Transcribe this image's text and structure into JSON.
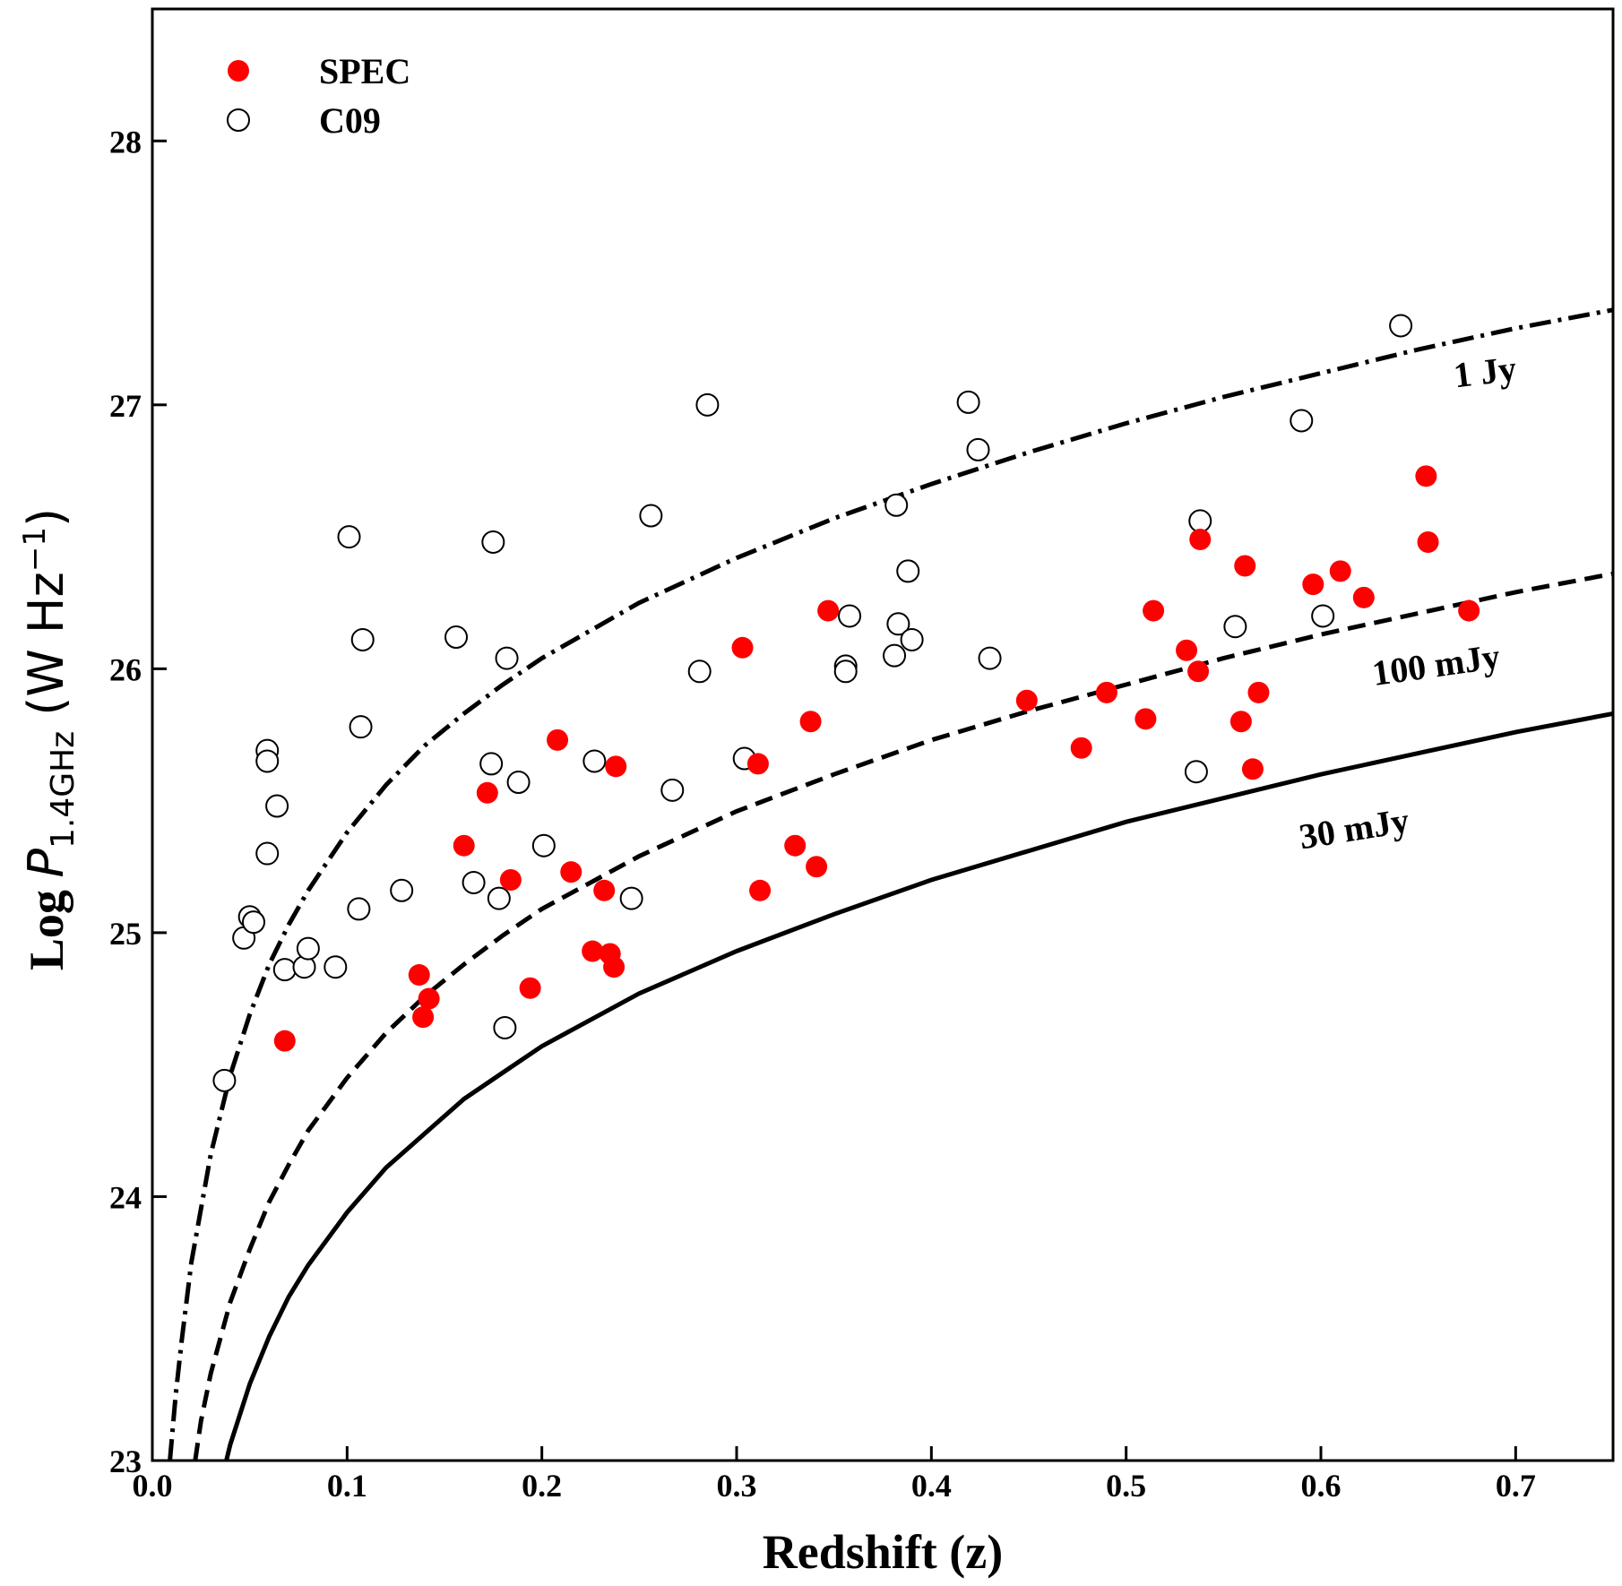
{
  "chart_data": {
    "type": "scatter",
    "xlabel": "Redshift (z)",
    "ylabel": {
      "prefix": "Log ",
      "symbol": "P",
      "subscript": "1.4GHz",
      "unit_open": " (W Hz",
      "unit_exp": "−1",
      "unit_close": ")"
    },
    "xlim": [
      0.0,
      0.75
    ],
    "ylim": [
      23,
      28.5
    ],
    "xticks": [
      0.0,
      0.1,
      0.2,
      0.3,
      0.4,
      0.5,
      0.6,
      0.7
    ],
    "xtick_labels": [
      "0.0",
      "0.1",
      "0.2",
      "0.3",
      "0.4",
      "0.5",
      "0.6",
      "0.7"
    ],
    "yticks": [
      23,
      24,
      25,
      26,
      27,
      28
    ],
    "ytick_labels": [
      "23",
      "24",
      "25",
      "26",
      "27",
      "28"
    ],
    "grid": false,
    "legend_position": "top-left",
    "colors": {
      "spec": "#ff0000",
      "edge": "#000000"
    },
    "series": [
      {
        "name": "SPEC",
        "marker": "filled-circle",
        "color": "#ff0000",
        "points": [
          [
            0.068,
            24.59
          ],
          [
            0.137,
            24.84
          ],
          [
            0.139,
            24.68
          ],
          [
            0.142,
            24.75
          ],
          [
            0.16,
            25.33
          ],
          [
            0.172,
            25.53
          ],
          [
            0.184,
            25.2
          ],
          [
            0.194,
            24.79
          ],
          [
            0.208,
            25.73
          ],
          [
            0.215,
            25.23
          ],
          [
            0.226,
            24.93
          ],
          [
            0.232,
            25.16
          ],
          [
            0.235,
            24.92
          ],
          [
            0.237,
            24.87
          ],
          [
            0.238,
            25.63
          ],
          [
            0.303,
            26.08
          ],
          [
            0.311,
            25.64
          ],
          [
            0.312,
            25.16
          ],
          [
            0.33,
            25.33
          ],
          [
            0.338,
            25.8
          ],
          [
            0.341,
            25.25
          ],
          [
            0.347,
            26.22
          ],
          [
            0.449,
            25.88
          ],
          [
            0.477,
            25.7
          ],
          [
            0.49,
            25.91
          ],
          [
            0.51,
            25.81
          ],
          [
            0.514,
            26.22
          ],
          [
            0.531,
            26.07
          ],
          [
            0.537,
            25.99
          ],
          [
            0.538,
            26.49
          ],
          [
            0.559,
            25.8
          ],
          [
            0.561,
            26.39
          ],
          [
            0.565,
            25.62
          ],
          [
            0.568,
            25.91
          ],
          [
            0.596,
            26.32
          ],
          [
            0.61,
            26.37
          ],
          [
            0.622,
            26.27
          ],
          [
            0.654,
            26.73
          ],
          [
            0.655,
            26.48
          ],
          [
            0.676,
            26.22
          ]
        ]
      },
      {
        "name": "C09",
        "marker": "open-circle",
        "color": "#000000",
        "points": [
          [
            0.037,
            24.44
          ],
          [
            0.047,
            24.98
          ],
          [
            0.05,
            25.06
          ],
          [
            0.052,
            25.04
          ],
          [
            0.059,
            25.69
          ],
          [
            0.059,
            25.65
          ],
          [
            0.059,
            25.3
          ],
          [
            0.064,
            25.48
          ],
          [
            0.068,
            24.86
          ],
          [
            0.078,
            24.87
          ],
          [
            0.08,
            24.94
          ],
          [
            0.094,
            24.87
          ],
          [
            0.101,
            26.5
          ],
          [
            0.106,
            25.09
          ],
          [
            0.107,
            25.78
          ],
          [
            0.108,
            26.11
          ],
          [
            0.128,
            25.16
          ],
          [
            0.156,
            26.12
          ],
          [
            0.165,
            25.19
          ],
          [
            0.174,
            25.64
          ],
          [
            0.175,
            26.48
          ],
          [
            0.178,
            25.13
          ],
          [
            0.181,
            24.64
          ],
          [
            0.182,
            26.04
          ],
          [
            0.188,
            25.57
          ],
          [
            0.201,
            25.33
          ],
          [
            0.227,
            25.65
          ],
          [
            0.246,
            25.13
          ],
          [
            0.256,
            26.58
          ],
          [
            0.267,
            25.54
          ],
          [
            0.281,
            25.99
          ],
          [
            0.285,
            27.0
          ],
          [
            0.304,
            25.66
          ],
          [
            0.356,
            26.01
          ],
          [
            0.356,
            25.99
          ],
          [
            0.358,
            26.2
          ],
          [
            0.381,
            26.05
          ],
          [
            0.382,
            26.62
          ],
          [
            0.383,
            26.17
          ],
          [
            0.388,
            26.37
          ],
          [
            0.39,
            26.11
          ],
          [
            0.419,
            27.01
          ],
          [
            0.424,
            26.83
          ],
          [
            0.43,
            26.04
          ],
          [
            0.536,
            25.61
          ],
          [
            0.538,
            26.56
          ],
          [
            0.556,
            26.16
          ],
          [
            0.59,
            26.94
          ],
          [
            0.601,
            26.2
          ],
          [
            0.641,
            27.3
          ]
        ]
      }
    ],
    "curves": [
      {
        "label": "1 Jy",
        "style": "dash-dot",
        "points": [
          [
            0.009,
            23.0
          ],
          [
            0.012,
            23.25
          ],
          [
            0.015,
            23.45
          ],
          [
            0.02,
            23.75
          ],
          [
            0.03,
            24.16
          ],
          [
            0.04,
            24.46
          ],
          [
            0.05,
            24.69
          ],
          [
            0.06,
            24.88
          ],
          [
            0.07,
            25.03
          ],
          [
            0.08,
            25.16
          ],
          [
            0.1,
            25.38
          ],
          [
            0.12,
            25.56
          ],
          [
            0.14,
            25.71
          ],
          [
            0.16,
            25.83
          ],
          [
            0.18,
            25.94
          ],
          [
            0.2,
            26.04
          ],
          [
            0.25,
            26.25
          ],
          [
            0.3,
            26.42
          ],
          [
            0.35,
            26.57
          ],
          [
            0.4,
            26.7
          ],
          [
            0.45,
            26.82
          ],
          [
            0.5,
            26.93
          ],
          [
            0.55,
            27.03
          ],
          [
            0.6,
            27.12
          ],
          [
            0.65,
            27.21
          ],
          [
            0.7,
            27.29
          ],
          [
            0.75,
            27.36
          ]
        ]
      },
      {
        "label": "100 mJy",
        "style": "dashed",
        "points": [
          [
            0.022,
            23.0
          ],
          [
            0.025,
            23.15
          ],
          [
            0.03,
            23.33
          ],
          [
            0.04,
            23.6
          ],
          [
            0.05,
            23.8
          ],
          [
            0.06,
            23.98
          ],
          [
            0.07,
            24.12
          ],
          [
            0.08,
            24.25
          ],
          [
            0.1,
            24.45
          ],
          [
            0.12,
            24.62
          ],
          [
            0.14,
            24.76
          ],
          [
            0.16,
            24.88
          ],
          [
            0.18,
            24.99
          ],
          [
            0.2,
            25.09
          ],
          [
            0.25,
            25.29
          ],
          [
            0.3,
            25.46
          ],
          [
            0.35,
            25.6
          ],
          [
            0.4,
            25.73
          ],
          [
            0.45,
            25.84
          ],
          [
            0.5,
            25.94
          ],
          [
            0.55,
            26.04
          ],
          [
            0.6,
            26.13
          ],
          [
            0.65,
            26.21
          ],
          [
            0.7,
            26.29
          ],
          [
            0.75,
            26.36
          ]
        ]
      },
      {
        "label": "30 mJy",
        "style": "solid",
        "points": [
          [
            0.038,
            23.0
          ],
          [
            0.04,
            23.06
          ],
          [
            0.05,
            23.29
          ],
          [
            0.06,
            23.47
          ],
          [
            0.07,
            23.62
          ],
          [
            0.08,
            23.74
          ],
          [
            0.1,
            23.94
          ],
          [
            0.12,
            24.11
          ],
          [
            0.14,
            24.24
          ],
          [
            0.16,
            24.37
          ],
          [
            0.18,
            24.47
          ],
          [
            0.2,
            24.57
          ],
          [
            0.25,
            24.77
          ],
          [
            0.3,
            24.93
          ],
          [
            0.35,
            25.07
          ],
          [
            0.4,
            25.2
          ],
          [
            0.45,
            25.31
          ],
          [
            0.5,
            25.42
          ],
          [
            0.55,
            25.51
          ],
          [
            0.6,
            25.6
          ],
          [
            0.65,
            25.68
          ],
          [
            0.7,
            25.76
          ],
          [
            0.75,
            25.83
          ]
        ]
      }
    ],
    "curve_labels": [
      {
        "text": "1 Jy",
        "x": 0.685,
        "y": 27.08,
        "rotate": -7
      },
      {
        "text": "100 mJy",
        "x": 0.66,
        "y": 25.97,
        "rotate": -8
      },
      {
        "text": "30 mJy",
        "x": 0.618,
        "y": 25.35,
        "rotate": -9
      }
    ]
  }
}
